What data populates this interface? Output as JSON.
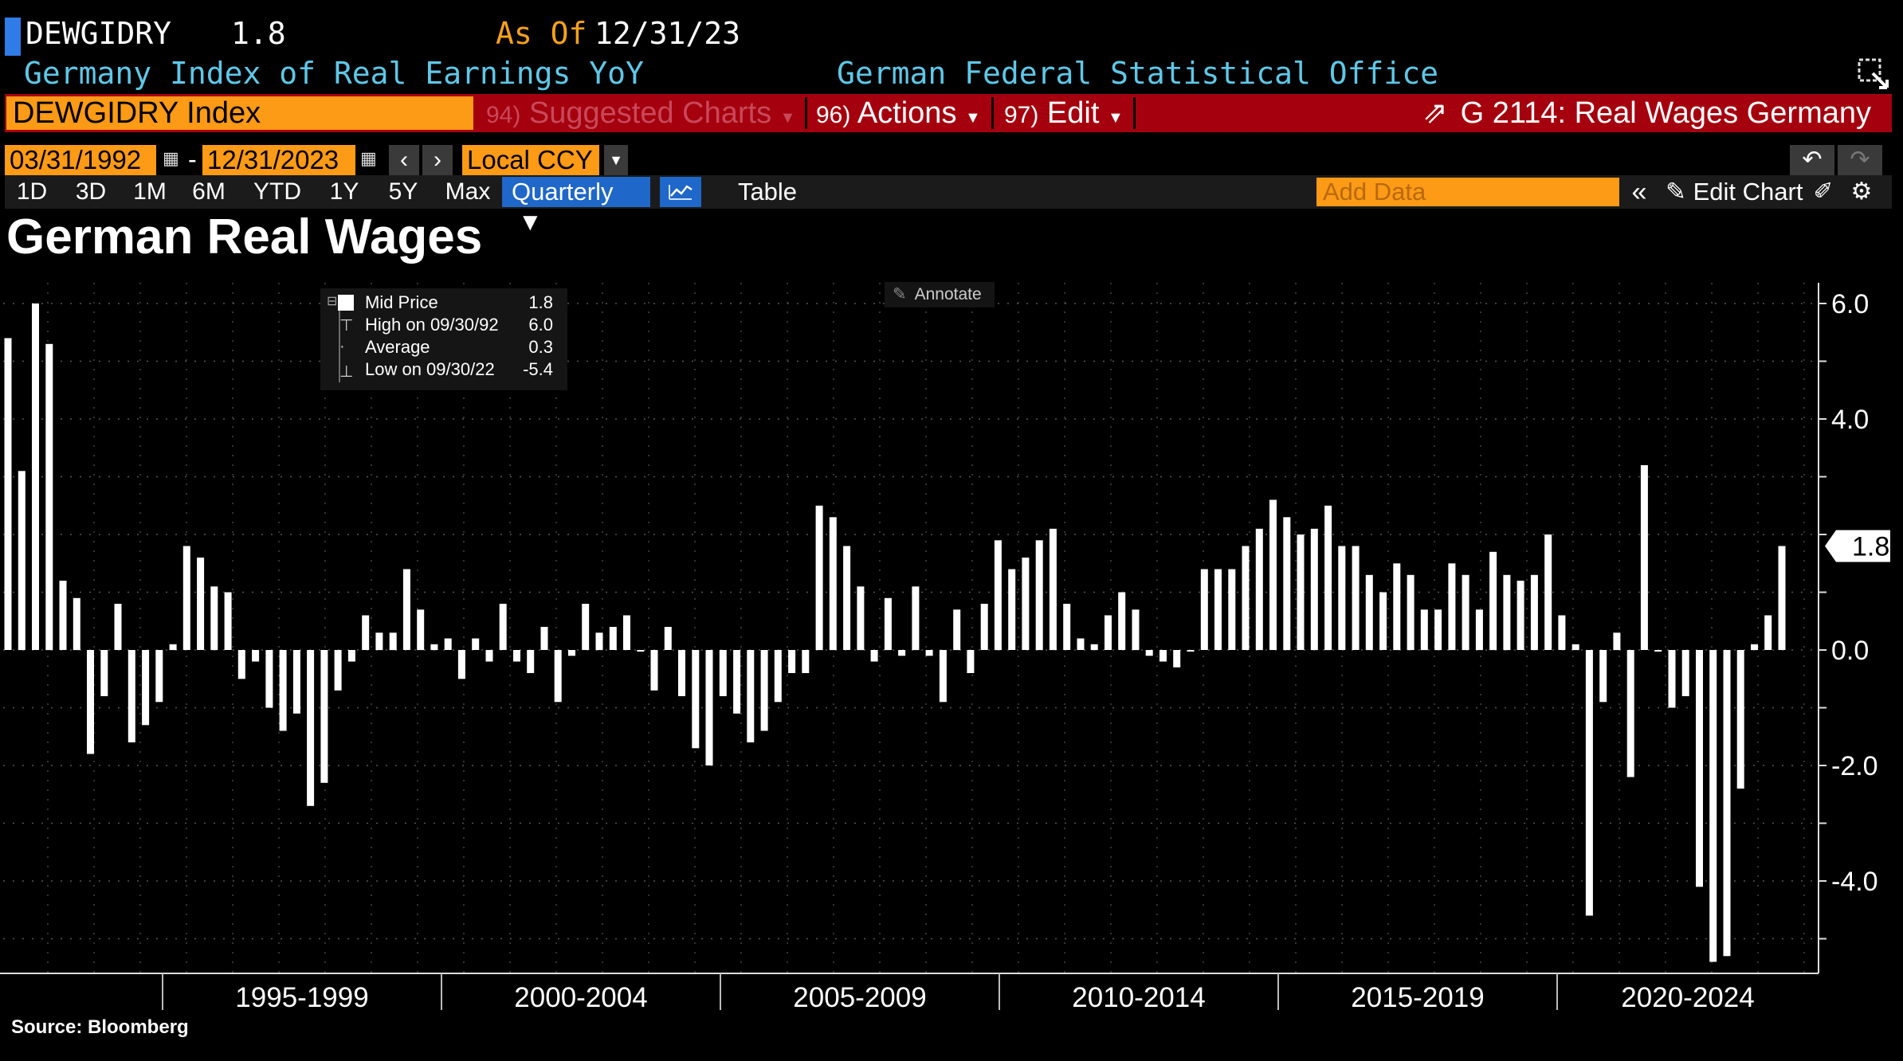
{
  "header": {
    "ticker": "DEWGIDRY",
    "last_value": "1.8",
    "asof_label": "As Of",
    "asof_date": "12/31/23",
    "description": "Germany Index of Real Earnings YoY",
    "source_org": "German Federal Statistical Office"
  },
  "command_bar": {
    "security": "DEWGIDRY Index",
    "suggested_num": "94)",
    "suggested_label": "Suggested Charts",
    "actions_num": "96)",
    "actions_label": "Actions",
    "edit_num": "97)",
    "edit_label": "Edit",
    "chart_name": "G 2114: Real Wages Germany"
  },
  "date_range": {
    "start": "03/31/1992",
    "dash": "-",
    "end": "12/31/2023",
    "currency": "Local CCY"
  },
  "periods": [
    "1D",
    "3D",
    "1M",
    "6M",
    "YTD",
    "1Y",
    "5Y",
    "Max"
  ],
  "frequency": "Quarterly",
  "table_label": "Table",
  "add_data_placeholder": "Add Data",
  "edit_chart_label": "Edit Chart",
  "legend": {
    "mid_label": "Mid Price",
    "mid_value": "1.8",
    "high_label": "High on 09/30/92",
    "high_value": "6.0",
    "avg_label": "Average",
    "avg_value": "0.3",
    "low_label": "Low on 09/30/22",
    "low_value": "-5.4"
  },
  "annotate_label": "Annotate",
  "source_note": "Source: Bloomberg",
  "colors": {
    "accent_orange": "#fd9a16",
    "command_red": "#a5000d",
    "description_cyan": "#5ec8e8",
    "bar": "#ffffff"
  },
  "chart_data": {
    "type": "bar",
    "title": "German Real Wages",
    "frequency": "quarterly",
    "x_start": "1992Q1",
    "x_end": "2023Q4",
    "x_tick_labels": [
      "1995-1999",
      "2000-2004",
      "2005-2009",
      "2010-2014",
      "2015-2019",
      "2020-2024"
    ],
    "y_ticks": [
      "6.0",
      "4.0",
      "0.0",
      "-2.0",
      "-4.0"
    ],
    "ylim": [
      -5.6,
      6.3
    ],
    "last_value_label": "1.8",
    "series": [
      {
        "values": [
          5.4,
          3.1,
          6.0,
          5.3,
          1.2,
          0.9,
          -1.8,
          -0.8,
          0.8,
          -1.6,
          -1.3,
          -0.9,
          0.1,
          1.8,
          1.6,
          1.1,
          1.0,
          -0.5,
          -0.2,
          -1.0,
          -1.4,
          -1.1,
          -2.7,
          -2.3,
          -0.7,
          -0.2,
          0.6,
          0.3,
          0.3,
          1.4,
          0.7,
          0.1,
          0.2,
          -0.5,
          0.2,
          -0.2,
          0.8,
          -0.2,
          -0.4,
          0.4,
          -0.9,
          -0.1,
          0.8,
          0.3,
          0.4,
          0.6,
          0.0,
          -0.7,
          0.4,
          -0.8,
          -1.7,
          -2.0,
          -0.8,
          -1.1,
          -1.6,
          -1.4,
          -0.9,
          -0.4,
          -0.4,
          2.5,
          2.3,
          1.8,
          1.1,
          -0.2,
          0.9,
          -0.1,
          1.1,
          -0.1,
          -0.9,
          0.7,
          -0.4,
          0.8,
          1.9,
          1.4,
          1.6,
          1.9,
          2.1,
          0.8,
          0.2,
          0.1,
          0.6,
          1.0,
          0.7,
          -0.1,
          -0.2,
          -0.3,
          0.0,
          1.4,
          1.4,
          1.4,
          1.8,
          2.1,
          2.6,
          2.3,
          2.0,
          2.1,
          2.5,
          1.8,
          1.8,
          1.3,
          1.0,
          1.5,
          1.3,
          0.7,
          0.7,
          1.5,
          1.3,
          0.7,
          1.7,
          1.3,
          1.2,
          1.3,
          2.0,
          0.6,
          0.1,
          -4.6,
          -0.9,
          0.3,
          -2.2,
          3.2,
          0.0,
          -1.0,
          -0.8,
          -4.1,
          -5.4,
          -5.3,
          -2.4,
          0.1,
          0.6,
          1.8
        ]
      }
    ]
  }
}
